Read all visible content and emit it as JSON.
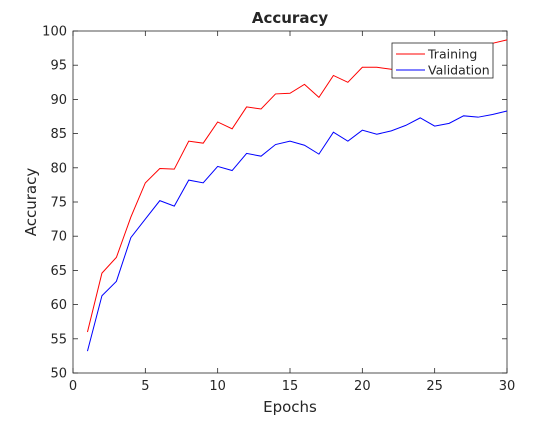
{
  "chart_data": {
    "type": "line",
    "title": "Accuracy",
    "xlabel": "Epochs",
    "ylabel": "Accuracy",
    "xlim": [
      0,
      30
    ],
    "ylim": [
      50,
      100
    ],
    "xticks": [
      0,
      5,
      10,
      15,
      20,
      25,
      30
    ],
    "yticks": [
      50,
      55,
      60,
      65,
      70,
      75,
      80,
      85,
      90,
      95,
      100
    ],
    "grid": false,
    "legend_position": "top-right",
    "x": [
      1,
      2,
      3,
      4,
      5,
      6,
      7,
      8,
      9,
      10,
      11,
      12,
      13,
      14,
      15,
      16,
      17,
      18,
      19,
      20,
      21,
      22,
      23,
      24,
      25,
      26,
      27,
      28,
      29,
      30
    ],
    "series": [
      {
        "name": "Training",
        "color": "#ff0000",
        "values": [
          56.0,
          64.6,
          66.9,
          72.8,
          77.8,
          79.9,
          79.8,
          83.9,
          83.6,
          86.7,
          85.7,
          88.9,
          88.6,
          90.8,
          90.9,
          92.2,
          90.3,
          93.5,
          92.5,
          94.7,
          94.7,
          94.4,
          94.9,
          95.4,
          95.3,
          96.0,
          96.5,
          97.2,
          98.2,
          98.7
        ]
      },
      {
        "name": "Validation",
        "color": "#0000ff",
        "values": [
          53.2,
          61.3,
          63.4,
          69.8,
          72.5,
          75.2,
          74.4,
          78.2,
          77.8,
          80.2,
          79.6,
          82.1,
          81.7,
          83.4,
          83.9,
          83.3,
          82.0,
          85.2,
          83.9,
          85.5,
          84.9,
          85.4,
          86.2,
          87.3,
          86.1,
          86.5,
          87.6,
          87.4,
          87.8,
          88.3
        ]
      }
    ]
  }
}
